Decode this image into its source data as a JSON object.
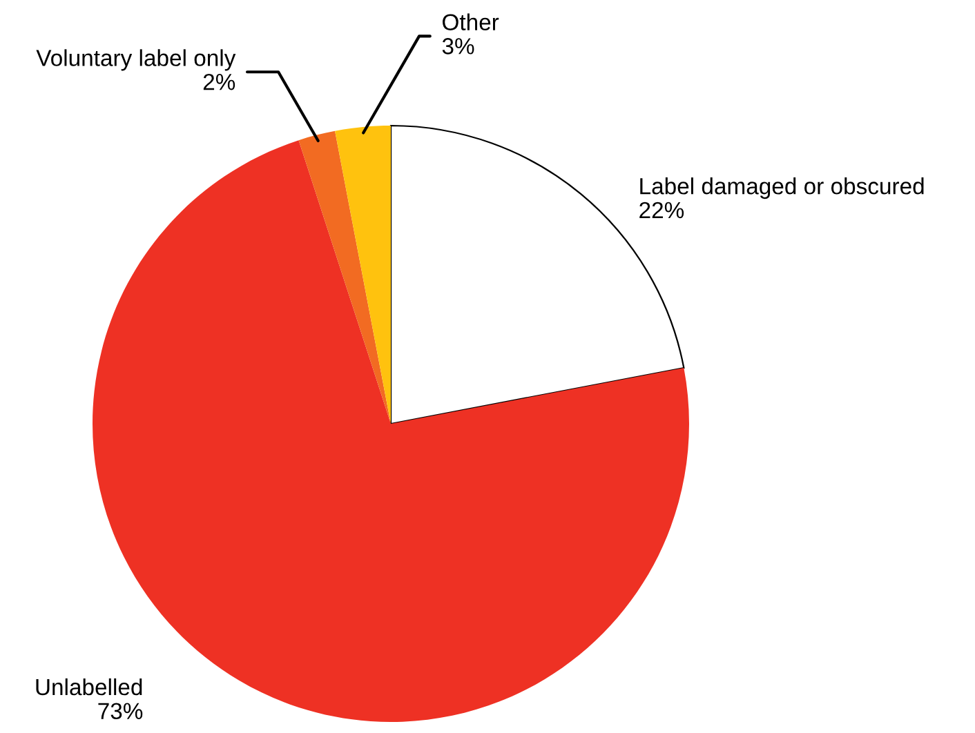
{
  "chart_data": {
    "type": "pie",
    "categories": [
      "Label damaged or obscured",
      "Unlabelled",
      "Voluntary label only",
      "Other"
    ],
    "values": [
      22,
      73,
      2,
      3
    ],
    "colors": [
      "#ffffff",
      "#ee3124",
      "#f26b22",
      "#ffc20e"
    ],
    "value_labels": [
      "22%",
      "73%",
      "2%",
      "3%"
    ]
  }
}
